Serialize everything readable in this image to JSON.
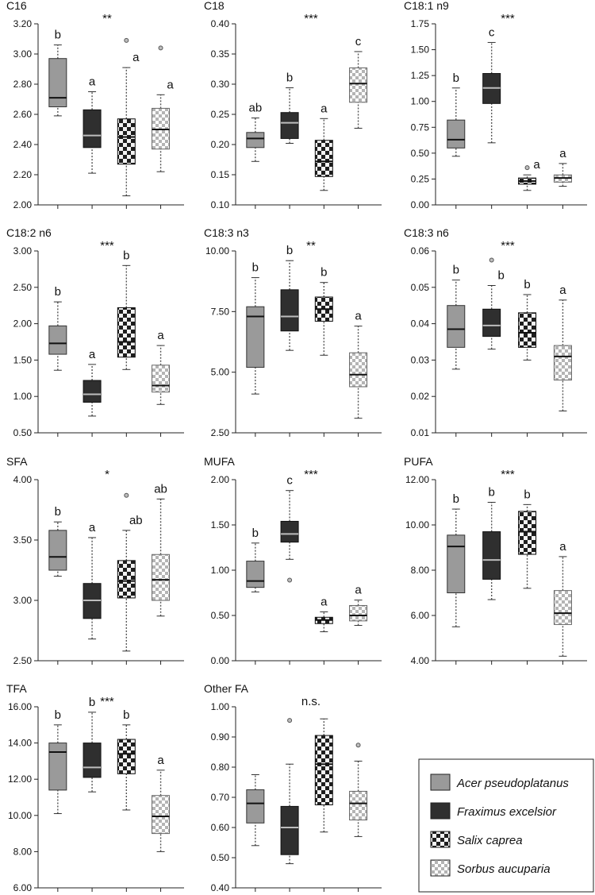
{
  "colors": {
    "Acer pseudoplatanus": "#9a9a9a",
    "Fraximus excelsior": "#2f2f2f",
    "Salix caprea": "checker-dark",
    "Sorbus aucuparia": "checker-light"
  },
  "legend": {
    "items": [
      {
        "label": "Acer pseudoplatanus",
        "fill": "acer",
        "icon": "grey-box-icon"
      },
      {
        "label": "Fraximus excelsior",
        "fill": "fraxinus",
        "icon": "dark-box-icon"
      },
      {
        "label": "Salix caprea",
        "fill": "salix",
        "icon": "checker-dark-box-icon"
      },
      {
        "label": "Sorbus aucuparia",
        "fill": "sorbus",
        "icon": "checker-light-box-icon"
      }
    ]
  },
  "chart_data": [
    {
      "type": "box",
      "title": "C16",
      "significance": "**",
      "ylim": [
        2.0,
        3.2
      ],
      "yticks": [
        "2.00",
        "2.20",
        "2.40",
        "2.60",
        "2.80",
        "3.00",
        "3.20"
      ],
      "boxes": [
        {
          "series": "Acer pseudoplatanus",
          "min": 2.59,
          "q1": 2.65,
          "median": 2.71,
          "q3": 2.97,
          "max": 3.06,
          "outliers": [],
          "letter": "b"
        },
        {
          "series": "Fraximus excelsior",
          "min": 2.21,
          "q1": 2.38,
          "median": 2.46,
          "q3": 2.63,
          "max": 2.75,
          "outliers": [],
          "letter": "a"
        },
        {
          "series": "Salix caprea",
          "min": 2.06,
          "q1": 2.27,
          "median": 2.45,
          "q3": 2.57,
          "max": 2.91,
          "outliers": [
            3.09
          ],
          "letter": "a"
        },
        {
          "series": "Sorbus aucuparia",
          "min": 2.22,
          "q1": 2.37,
          "median": 2.5,
          "q3": 2.64,
          "max": 2.73,
          "outliers": [
            3.04
          ],
          "letter": "a"
        }
      ]
    },
    {
      "type": "box",
      "title": "C18",
      "significance": "***",
      "ylim": [
        0.1,
        0.4
      ],
      "yticks": [
        "0.10",
        "0.15",
        "0.20",
        "0.25",
        "0.30",
        "0.35",
        "0.40"
      ],
      "boxes": [
        {
          "series": "Acer pseudoplatanus",
          "min": 0.172,
          "q1": 0.195,
          "median": 0.21,
          "q3": 0.22,
          "max": 0.244,
          "outliers": [],
          "letter": "ab"
        },
        {
          "series": "Fraximus excelsior",
          "min": 0.202,
          "q1": 0.21,
          "median": 0.236,
          "q3": 0.253,
          "max": 0.294,
          "outliers": [],
          "letter": "b"
        },
        {
          "series": "Salix caprea",
          "min": 0.124,
          "q1": 0.147,
          "median": 0.172,
          "q3": 0.207,
          "max": 0.243,
          "outliers": [],
          "letter": "a"
        },
        {
          "series": "Sorbus aucuparia",
          "min": 0.227,
          "q1": 0.27,
          "median": 0.301,
          "q3": 0.327,
          "max": 0.354,
          "outliers": [],
          "letter": "c"
        }
      ]
    },
    {
      "type": "box",
      "title": "C18:1 n9",
      "significance": "***",
      "ylim": [
        0.0,
        1.75
      ],
      "yticks": [
        "0.00",
        "0.25",
        "0.50",
        "0.75",
        "1.00",
        "1.25",
        "1.50",
        "1.75"
      ],
      "boxes": [
        {
          "series": "Acer pseudoplatanus",
          "min": 0.47,
          "q1": 0.55,
          "median": 0.63,
          "q3": 0.82,
          "max": 1.13,
          "outliers": [],
          "letter": "b"
        },
        {
          "series": "Fraximus excelsior",
          "min": 0.6,
          "q1": 0.98,
          "median": 1.13,
          "q3": 1.27,
          "max": 1.57,
          "outliers": [],
          "letter": "c"
        },
        {
          "series": "Salix caprea",
          "min": 0.14,
          "q1": 0.2,
          "median": 0.23,
          "q3": 0.26,
          "max": 0.29,
          "outliers": [
            0.36
          ],
          "letter": "a"
        },
        {
          "series": "Sorbus aucuparia",
          "min": 0.18,
          "q1": 0.22,
          "median": 0.26,
          "q3": 0.29,
          "max": 0.4,
          "outliers": [],
          "letter": "a"
        }
      ]
    },
    {
      "type": "box",
      "title": "C18:2 n6",
      "significance": "***",
      "ylim": [
        0.5,
        3.0
      ],
      "yticks": [
        "0.50",
        "1.00",
        "1.50",
        "2.00",
        "2.50",
        "3.00"
      ],
      "boxes": [
        {
          "series": "Acer pseudoplatanus",
          "min": 1.36,
          "q1": 1.58,
          "median": 1.73,
          "q3": 1.97,
          "max": 2.3,
          "outliers": [],
          "letter": "b"
        },
        {
          "series": "Fraximus excelsior",
          "min": 0.73,
          "q1": 0.92,
          "median": 1.03,
          "q3": 1.22,
          "max": 1.44,
          "outliers": [],
          "letter": "a"
        },
        {
          "series": "Salix caprea",
          "min": 1.37,
          "q1": 1.54,
          "median": 1.75,
          "q3": 2.22,
          "max": 2.8,
          "outliers": [],
          "letter": "b"
        },
        {
          "series": "Sorbus aucuparia",
          "min": 0.89,
          "q1": 1.06,
          "median": 1.15,
          "q3": 1.43,
          "max": 1.7,
          "outliers": [],
          "letter": "a"
        }
      ]
    },
    {
      "type": "box",
      "title": "C18:3 n3",
      "significance": "**",
      "ylim": [
        2.5,
        10.0
      ],
      "yticks": [
        "2.50",
        "5.00",
        "7.50",
        "10.00"
      ],
      "boxes": [
        {
          "series": "Acer pseudoplatanus",
          "min": 4.1,
          "q1": 5.2,
          "median": 7.3,
          "q3": 7.7,
          "max": 8.9,
          "outliers": [],
          "letter": "b"
        },
        {
          "series": "Fraximus excelsior",
          "min": 5.9,
          "q1": 6.7,
          "median": 7.3,
          "q3": 8.4,
          "max": 9.6,
          "outliers": [],
          "letter": "b"
        },
        {
          "series": "Salix caprea",
          "min": 5.7,
          "q1": 7.1,
          "median": 7.6,
          "q3": 8.1,
          "max": 8.7,
          "outliers": [],
          "letter": "b"
        },
        {
          "series": "Sorbus aucuparia",
          "min": 3.1,
          "q1": 4.4,
          "median": 4.9,
          "q3": 5.8,
          "max": 6.9,
          "outliers": [],
          "letter": "a"
        }
      ]
    },
    {
      "type": "box",
      "title": "C18:3 n6",
      "significance": "***",
      "ylim": [
        0.01,
        0.06
      ],
      "yticks": [
        "0.01",
        "0.02",
        "0.03",
        "0.04",
        "0.05",
        "0.06"
      ],
      "boxes": [
        {
          "series": "Acer pseudoplatanus",
          "min": 0.0275,
          "q1": 0.0335,
          "median": 0.0385,
          "q3": 0.045,
          "max": 0.052,
          "outliers": [],
          "letter": "b"
        },
        {
          "series": "Fraximus excelsior",
          "min": 0.033,
          "q1": 0.0365,
          "median": 0.0395,
          "q3": 0.044,
          "max": 0.0505,
          "outliers": [
            0.0575
          ],
          "letter": "b"
        },
        {
          "series": "Salix caprea",
          "min": 0.03,
          "q1": 0.0335,
          "median": 0.0375,
          "q3": 0.043,
          "max": 0.048,
          "outliers": [],
          "letter": "b"
        },
        {
          "series": "Sorbus aucuparia",
          "min": 0.016,
          "q1": 0.0245,
          "median": 0.031,
          "q3": 0.034,
          "max": 0.0465,
          "outliers": [],
          "letter": "a"
        }
      ]
    },
    {
      "type": "box",
      "title": "SFA",
      "significance": "*",
      "ylim": [
        2.5,
        4.0
      ],
      "yticks": [
        "2.50",
        "3.00",
        "3.50",
        "4.00"
      ],
      "boxes": [
        {
          "series": "Acer pseudoplatanus",
          "min": 3.2,
          "q1": 3.25,
          "median": 3.36,
          "q3": 3.58,
          "max": 3.65,
          "outliers": [],
          "letter": "b"
        },
        {
          "series": "Fraximus excelsior",
          "min": 2.68,
          "q1": 2.85,
          "median": 3.0,
          "q3": 3.14,
          "max": 3.52,
          "outliers": [],
          "letter": "a"
        },
        {
          "series": "Salix caprea",
          "min": 2.58,
          "q1": 3.02,
          "median": 3.16,
          "q3": 3.33,
          "max": 3.58,
          "outliers": [
            3.87
          ],
          "letter": "ab"
        },
        {
          "series": "Sorbus aucuparia",
          "min": 2.87,
          "q1": 3.0,
          "median": 3.17,
          "q3": 3.38,
          "max": 3.84,
          "outliers": [],
          "letter": "ab"
        }
      ]
    },
    {
      "type": "box",
      "title": "MUFA",
      "significance": "***",
      "ylim": [
        0.0,
        2.0
      ],
      "yticks": [
        "0.00",
        "0.50",
        "1.00",
        "1.50",
        "2.00"
      ],
      "boxes": [
        {
          "series": "Acer pseudoplatanus",
          "min": 0.76,
          "q1": 0.81,
          "median": 0.88,
          "q3": 1.1,
          "max": 1.3,
          "outliers": [],
          "letter": "b"
        },
        {
          "series": "Fraximus excelsior",
          "min": 1.12,
          "q1": 1.31,
          "median": 1.4,
          "q3": 1.54,
          "max": 1.88,
          "outliers": [
            0.89
          ],
          "letter": "c"
        },
        {
          "series": "Salix caprea",
          "min": 0.32,
          "q1": 0.41,
          "median": 0.45,
          "q3": 0.48,
          "max": 0.54,
          "outliers": [],
          "letter": "a"
        },
        {
          "series": "Sorbus aucuparia",
          "min": 0.39,
          "q1": 0.44,
          "median": 0.5,
          "q3": 0.61,
          "max": 0.67,
          "outliers": [],
          "letter": "a"
        }
      ]
    },
    {
      "type": "box",
      "title": "PUFA",
      "significance": "***",
      "ylim": [
        4.0,
        12.0
      ],
      "yticks": [
        "4.00",
        "6.00",
        "8.00",
        "10.00",
        "12.00"
      ],
      "boxes": [
        {
          "series": "Acer pseudoplatanus",
          "min": 5.5,
          "q1": 7.0,
          "median": 9.05,
          "q3": 9.55,
          "max": 10.7,
          "outliers": [],
          "letter": "b"
        },
        {
          "series": "Fraximus excelsior",
          "min": 6.7,
          "q1": 7.6,
          "median": 8.45,
          "q3": 9.7,
          "max": 11.0,
          "outliers": [],
          "letter": "b"
        },
        {
          "series": "Salix caprea",
          "min": 7.2,
          "q1": 8.7,
          "median": 9.7,
          "q3": 10.6,
          "max": 10.9,
          "outliers": [],
          "letter": "b"
        },
        {
          "series": "Sorbus aucuparia",
          "min": 4.2,
          "q1": 5.6,
          "median": 6.1,
          "q3": 7.1,
          "max": 8.6,
          "outliers": [],
          "letter": "a"
        }
      ]
    },
    {
      "type": "box",
      "title": "TFA",
      "significance": "***",
      "ylim": [
        6.0,
        16.0
      ],
      "yticks": [
        "6.00",
        "8.00",
        "10.00",
        "12.00",
        "14.00",
        "16.00"
      ],
      "boxes": [
        {
          "series": "Acer pseudoplatanus",
          "min": 10.1,
          "q1": 11.4,
          "median": 13.5,
          "q3": 14.0,
          "max": 15.0,
          "outliers": [],
          "letter": "b"
        },
        {
          "series": "Fraximus excelsior",
          "min": 11.3,
          "q1": 12.1,
          "median": 12.65,
          "q3": 14.0,
          "max": 15.7,
          "outliers": [],
          "letter": "b"
        },
        {
          "series": "Salix caprea",
          "min": 10.3,
          "q1": 12.3,
          "median": 13.4,
          "q3": 14.2,
          "max": 15.0,
          "outliers": [],
          "letter": "b"
        },
        {
          "series": "Sorbus aucuparia",
          "min": 8.0,
          "q1": 9.0,
          "median": 9.95,
          "q3": 11.1,
          "max": 12.5,
          "outliers": [],
          "letter": "a"
        }
      ]
    },
    {
      "type": "box",
      "title": "Other FA",
      "significance": "n.s.",
      "ylim": [
        0.4,
        1.0
      ],
      "yticks": [
        "0.40",
        "0.50",
        "0.60",
        "0.70",
        "0.80",
        "0.90",
        "1.00"
      ],
      "boxes": [
        {
          "series": "Acer pseudoplatanus",
          "min": 0.54,
          "q1": 0.615,
          "median": 0.68,
          "q3": 0.725,
          "max": 0.775,
          "outliers": [],
          "letter": ""
        },
        {
          "series": "Fraximus excelsior",
          "min": 0.48,
          "q1": 0.51,
          "median": 0.6,
          "q3": 0.67,
          "max": 0.81,
          "outliers": [
            0.955
          ],
          "letter": ""
        },
        {
          "series": "Salix caprea",
          "min": 0.585,
          "q1": 0.675,
          "median": 0.81,
          "q3": 0.905,
          "max": 0.96,
          "outliers": [],
          "letter": ""
        },
        {
          "series": "Sorbus aucuparia",
          "min": 0.57,
          "q1": 0.625,
          "median": 0.68,
          "q3": 0.72,
          "max": 0.82,
          "outliers": [
            0.873
          ],
          "letter": ""
        }
      ]
    }
  ]
}
